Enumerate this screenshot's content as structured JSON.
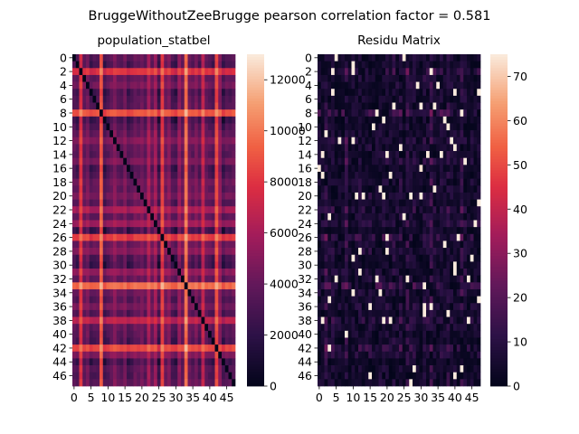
{
  "figure": {
    "title": "BruggeWithoutZeeBrugge pearson correlation factor = 0.581"
  },
  "chart_data": [
    {
      "type": "heatmap",
      "title": "population_statbel",
      "size": 48,
      "y_ticks": [
        "0",
        "2",
        "4",
        "6",
        "8",
        "10",
        "12",
        "14",
        "16",
        "18",
        "20",
        "22",
        "24",
        "26",
        "28",
        "30",
        "32",
        "34",
        "36",
        "38",
        "40",
        "42",
        "44",
        "46"
      ],
      "x_ticks": [
        "0",
        "5",
        "10",
        "15",
        "20",
        "25",
        "30",
        "35",
        "40",
        "45"
      ],
      "colorbar": {
        "min": 0,
        "max": 13000,
        "ticks": [
          "0",
          "2000",
          "4000",
          "6000",
          "8000",
          "10000",
          "12000"
        ]
      },
      "colormap": "rocket",
      "diagonal": "zero",
      "row_levels": [
        3500,
        2500,
        9500,
        4000,
        5000,
        2000,
        3000,
        3500,
        11000,
        900,
        3000,
        4000,
        5500,
        4000,
        3500,
        5000,
        2000,
        3000,
        4500,
        4000,
        5000,
        3500,
        7000,
        4000,
        6500,
        700,
        10000,
        4500,
        5500,
        2500,
        1200,
        6000,
        4000,
        12000,
        4500,
        3500,
        5000,
        3000,
        8000,
        4000,
        3500,
        2500,
        10500,
        5500,
        1000,
        3500,
        3000,
        4000
      ]
    },
    {
      "type": "heatmap",
      "title": "Residu Matrix",
      "size": 48,
      "y_ticks": [
        "0",
        "2",
        "4",
        "6",
        "8",
        "10",
        "12",
        "14",
        "16",
        "18",
        "20",
        "22",
        "24",
        "26",
        "28",
        "30",
        "32",
        "34",
        "36",
        "38",
        "40",
        "42",
        "44",
        "46"
      ],
      "x_ticks": [
        "0",
        "5",
        "10",
        "15",
        "20",
        "25",
        "30",
        "35",
        "40",
        "45"
      ],
      "colorbar": {
        "min": 0,
        "max": 75,
        "ticks": [
          "0",
          "10",
          "20",
          "30",
          "40",
          "50",
          "60",
          "70"
        ]
      },
      "colormap": "rocket",
      "residual_scale": 8,
      "residual_cap": 75
    }
  ]
}
